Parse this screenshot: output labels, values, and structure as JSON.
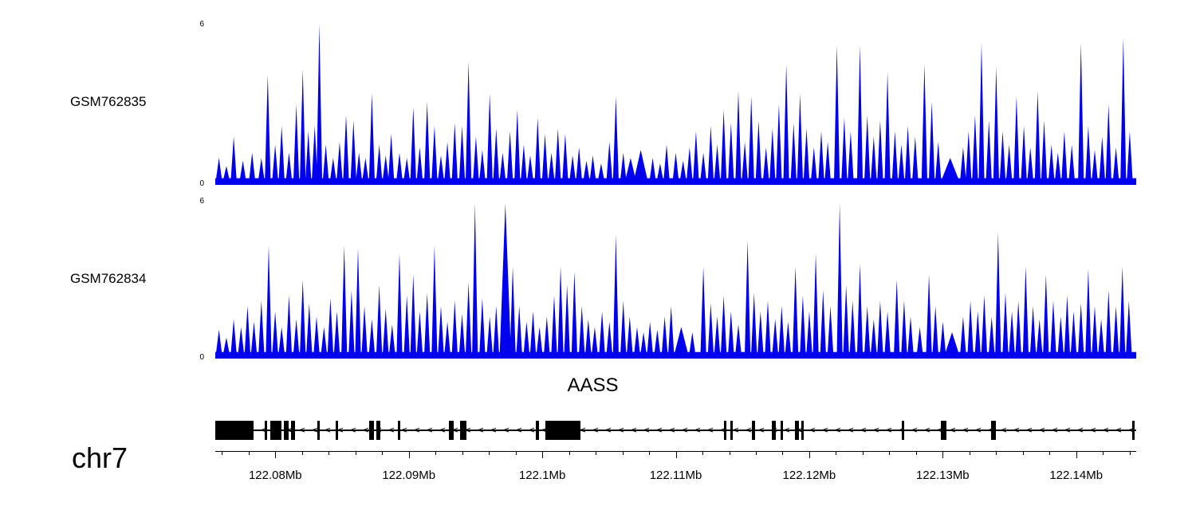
{
  "chart_data": {
    "type": "area",
    "title": "",
    "region": {
      "chromosome": "chr7",
      "start_mb": 122.0755,
      "end_mb": 122.1445,
      "unit": "Mb"
    },
    "tracks": [
      {
        "name": "GSM762835",
        "track_type": "coverage",
        "color": "#0000ee",
        "ylim": [
          0,
          6
        ],
        "yticks": [
          0,
          6
        ],
        "baseline": 0.25,
        "peaks": [
          [
            0.004,
            1.0
          ],
          [
            0.012,
            0.7
          ],
          [
            0.02,
            1.8
          ],
          [
            0.03,
            0.9
          ],
          [
            0.04,
            1.2
          ],
          [
            0.05,
            1.0
          ],
          [
            0.057,
            4.1
          ],
          [
            0.065,
            1.5
          ],
          [
            0.072,
            2.2
          ],
          [
            0.08,
            1.2
          ],
          [
            0.088,
            3.0
          ],
          [
            0.095,
            4.3
          ],
          [
            0.101,
            2.0
          ],
          [
            0.108,
            2.2
          ],
          [
            0.113,
            6.0
          ],
          [
            0.12,
            1.5
          ],
          [
            0.128,
            1.0
          ],
          [
            0.135,
            1.6
          ],
          [
            0.142,
            2.6
          ],
          [
            0.15,
            2.4
          ],
          [
            0.156,
            1.2
          ],
          [
            0.163,
            1.0
          ],
          [
            0.17,
            3.4
          ],
          [
            0.178,
            1.5
          ],
          [
            0.185,
            1.1
          ],
          [
            0.191,
            1.9
          ],
          [
            0.2,
            1.2
          ],
          [
            0.208,
            1.0
          ],
          [
            0.215,
            2.9
          ],
          [
            0.222,
            1.4
          ],
          [
            0.23,
            3.1
          ],
          [
            0.238,
            2.2
          ],
          [
            0.245,
            1.1
          ],
          [
            0.252,
            1.6
          ],
          [
            0.26,
            2.3
          ],
          [
            0.268,
            2.2
          ],
          [
            0.275,
            4.6
          ],
          [
            0.283,
            1.8
          ],
          [
            0.29,
            1.3
          ],
          [
            0.298,
            3.4
          ],
          [
            0.305,
            2.1
          ],
          [
            0.312,
            1.2
          ],
          [
            0.32,
            2.0
          ],
          [
            0.328,
            2.8
          ],
          [
            0.335,
            1.5
          ],
          [
            0.342,
            1.1
          ],
          [
            0.35,
            2.5
          ],
          [
            0.358,
            1.9
          ],
          [
            0.365,
            1.2
          ],
          [
            0.372,
            2.1
          ],
          [
            0.38,
            1.9
          ],
          [
            0.388,
            1.1
          ],
          [
            0.395,
            1.4
          ],
          [
            0.403,
            0.9
          ],
          [
            0.41,
            1.1
          ],
          [
            0.419,
            0.8
          ],
          [
            0.428,
            1.6
          ],
          [
            0.435,
            3.3
          ],
          [
            0.443,
            1.2
          ],
          [
            0.451,
            1.0,
            6
          ],
          [
            0.462,
            1.3,
            8
          ],
          [
            0.475,
            1.0
          ],
          [
            0.483,
            0.8
          ],
          [
            0.49,
            1.5
          ],
          [
            0.5,
            1.2
          ],
          [
            0.508,
            0.9
          ],
          [
            0.515,
            1.4
          ],
          [
            0.522,
            2.0
          ],
          [
            0.53,
            1.2
          ],
          [
            0.538,
            2.2
          ],
          [
            0.545,
            1.5
          ],
          [
            0.552,
            2.8
          ],
          [
            0.56,
            2.3
          ],
          [
            0.568,
            3.5
          ],
          [
            0.575,
            1.6
          ],
          [
            0.582,
            3.3
          ],
          [
            0.59,
            2.4
          ],
          [
            0.598,
            1.4
          ],
          [
            0.605,
            2.1
          ],
          [
            0.612,
            3.0
          ],
          [
            0.62,
            4.5
          ],
          [
            0.628,
            2.3
          ],
          [
            0.635,
            3.4
          ],
          [
            0.642,
            2.1
          ],
          [
            0.65,
            1.4
          ],
          [
            0.658,
            2.0
          ],
          [
            0.665,
            1.6
          ],
          [
            0.675,
            5.2
          ],
          [
            0.683,
            2.5
          ],
          [
            0.69,
            2.0
          ],
          [
            0.7,
            5.2
          ],
          [
            0.708,
            2.6
          ],
          [
            0.715,
            1.8
          ],
          [
            0.722,
            2.4
          ],
          [
            0.73,
            4.2
          ],
          [
            0.738,
            2.0
          ],
          [
            0.745,
            1.5
          ],
          [
            0.752,
            2.2
          ],
          [
            0.76,
            1.8
          ],
          [
            0.77,
            4.5
          ],
          [
            0.778,
            3.1
          ],
          [
            0.785,
            1.6
          ],
          [
            0.798,
            1.0,
            10
          ],
          [
            0.812,
            1.4
          ],
          [
            0.818,
            2.0
          ],
          [
            0.825,
            2.6
          ],
          [
            0.832,
            5.3
          ],
          [
            0.84,
            2.4
          ],
          [
            0.848,
            4.4
          ],
          [
            0.855,
            2.0
          ],
          [
            0.862,
            1.5
          ],
          [
            0.87,
            3.3
          ],
          [
            0.878,
            2.2
          ],
          [
            0.885,
            1.4
          ],
          [
            0.893,
            3.5
          ],
          [
            0.9,
            2.4
          ],
          [
            0.908,
            1.5
          ],
          [
            0.915,
            1.2
          ],
          [
            0.922,
            2.0
          ],
          [
            0.93,
            1.5
          ],
          [
            0.94,
            5.3
          ],
          [
            0.948,
            2.2
          ],
          [
            0.955,
            1.3
          ],
          [
            0.963,
            1.8
          ],
          [
            0.97,
            3.0
          ],
          [
            0.978,
            1.4
          ],
          [
            0.986,
            5.5
          ],
          [
            0.993,
            2.0
          ]
        ]
      },
      {
        "name": "GSM762834",
        "track_type": "coverage",
        "color": "#0000ee",
        "ylim": [
          0,
          6
        ],
        "yticks": [
          0,
          6
        ],
        "baseline": 0.25,
        "peaks": [
          [
            0.004,
            1.1
          ],
          [
            0.012,
            0.8
          ],
          [
            0.02,
            1.5
          ],
          [
            0.028,
            1.2
          ],
          [
            0.035,
            2.0
          ],
          [
            0.042,
            1.4
          ],
          [
            0.05,
            2.2
          ],
          [
            0.058,
            4.3
          ],
          [
            0.065,
            1.8
          ],
          [
            0.072,
            1.2
          ],
          [
            0.08,
            2.4
          ],
          [
            0.088,
            1.5
          ],
          [
            0.095,
            3.0
          ],
          [
            0.102,
            2.1
          ],
          [
            0.11,
            1.6
          ],
          [
            0.118,
            1.2
          ],
          [
            0.125,
            2.3
          ],
          [
            0.132,
            1.8
          ],
          [
            0.14,
            4.3
          ],
          [
            0.148,
            2.6
          ],
          [
            0.155,
            4.2
          ],
          [
            0.162,
            2.0
          ],
          [
            0.17,
            1.5
          ],
          [
            0.178,
            2.8
          ],
          [
            0.185,
            1.9
          ],
          [
            0.192,
            1.3
          ],
          [
            0.2,
            4.0
          ],
          [
            0.208,
            2.4
          ],
          [
            0.215,
            3.2
          ],
          [
            0.222,
            1.8
          ],
          [
            0.23,
            2.5
          ],
          [
            0.238,
            4.3
          ],
          [
            0.245,
            2.0
          ],
          [
            0.252,
            1.4
          ],
          [
            0.26,
            2.2
          ],
          [
            0.268,
            1.7
          ],
          [
            0.275,
            2.9
          ],
          [
            0.282,
            5.9
          ],
          [
            0.29,
            2.3
          ],
          [
            0.298,
            1.6
          ],
          [
            0.305,
            2.0
          ],
          [
            0.315,
            5.9,
            7
          ],
          [
            0.323,
            3.5
          ],
          [
            0.33,
            2.0
          ],
          [
            0.338,
            1.4
          ],
          [
            0.345,
            1.8
          ],
          [
            0.352,
            1.2
          ],
          [
            0.36,
            1.6
          ],
          [
            0.368,
            2.4
          ],
          [
            0.375,
            3.5
          ],
          [
            0.382,
            2.8
          ],
          [
            0.39,
            3.3
          ],
          [
            0.398,
            2.0
          ],
          [
            0.405,
            1.5
          ],
          [
            0.412,
            1.2
          ],
          [
            0.42,
            1.8
          ],
          [
            0.428,
            1.4
          ],
          [
            0.435,
            4.7
          ],
          [
            0.443,
            2.2
          ],
          [
            0.45,
            1.6
          ],
          [
            0.458,
            1.2
          ],
          [
            0.465,
            1.0
          ],
          [
            0.472,
            1.4
          ],
          [
            0.48,
            1.1
          ],
          [
            0.488,
            1.6
          ],
          [
            0.495,
            2.0
          ],
          [
            0.506,
            1.2,
            8
          ],
          [
            0.518,
            1.0
          ],
          [
            0.53,
            3.5
          ],
          [
            0.538,
            2.1
          ],
          [
            0.545,
            1.6
          ],
          [
            0.552,
            2.4
          ],
          [
            0.56,
            1.8
          ],
          [
            0.568,
            1.3
          ],
          [
            0.578,
            4.5
          ],
          [
            0.585,
            2.5
          ],
          [
            0.592,
            1.8
          ],
          [
            0.6,
            2.2
          ],
          [
            0.608,
            1.5
          ],
          [
            0.615,
            2.0
          ],
          [
            0.622,
            1.4
          ],
          [
            0.63,
            3.5
          ],
          [
            0.638,
            2.4
          ],
          [
            0.645,
            1.8
          ],
          [
            0.652,
            4.0
          ],
          [
            0.66,
            2.6
          ],
          [
            0.668,
            2.0
          ],
          [
            0.678,
            5.9
          ],
          [
            0.685,
            2.8
          ],
          [
            0.692,
            2.2
          ],
          [
            0.7,
            3.6
          ],
          [
            0.708,
            2.0
          ],
          [
            0.715,
            1.5
          ],
          [
            0.722,
            2.2
          ],
          [
            0.73,
            1.8
          ],
          [
            0.74,
            3.0
          ],
          [
            0.748,
            2.2
          ],
          [
            0.755,
            1.6
          ],
          [
            0.765,
            1.2
          ],
          [
            0.775,
            3.2
          ],
          [
            0.782,
            2.0
          ],
          [
            0.79,
            1.4
          ],
          [
            0.8,
            1.0,
            8
          ],
          [
            0.812,
            1.6
          ],
          [
            0.82,
            2.2
          ],
          [
            0.828,
            1.8
          ],
          [
            0.835,
            2.4
          ],
          [
            0.843,
            1.6
          ],
          [
            0.85,
            4.8
          ],
          [
            0.858,
            2.5
          ],
          [
            0.865,
            1.8
          ],
          [
            0.872,
            2.2
          ],
          [
            0.88,
            3.5
          ],
          [
            0.888,
            2.0
          ],
          [
            0.895,
            1.5
          ],
          [
            0.902,
            3.2
          ],
          [
            0.91,
            2.2
          ],
          [
            0.918,
            1.6
          ],
          [
            0.925,
            2.4
          ],
          [
            0.932,
            1.8
          ],
          [
            0.94,
            2.1
          ],
          [
            0.948,
            3.4
          ],
          [
            0.955,
            2.0
          ],
          [
            0.962,
            1.5
          ],
          [
            0.97,
            2.6
          ],
          [
            0.978,
            2.0
          ],
          [
            0.985,
            3.5
          ],
          [
            0.992,
            2.2
          ]
        ]
      }
    ],
    "gene_track": {
      "gene": "AASS",
      "strand": "-",
      "label_frac": 0.41,
      "exons": [
        {
          "x": 0.0,
          "w": 48
        },
        {
          "x": 0.054,
          "w": 3
        },
        {
          "x": 0.06,
          "w": 14
        },
        {
          "x": 0.074,
          "w": 6
        },
        {
          "x": 0.082,
          "w": 5
        },
        {
          "x": 0.111,
          "w": 3
        },
        {
          "x": 0.131,
          "w": 3
        },
        {
          "x": 0.167,
          "w": 6
        },
        {
          "x": 0.175,
          "w": 5
        },
        {
          "x": 0.198,
          "w": 3
        },
        {
          "x": 0.254,
          "w": 6
        },
        {
          "x": 0.266,
          "w": 8
        },
        {
          "x": 0.348,
          "w": 4
        },
        {
          "x": 0.358,
          "w": 44
        },
        {
          "x": 0.552,
          "w": 3
        },
        {
          "x": 0.559,
          "w": 3
        },
        {
          "x": 0.583,
          "w": 4
        },
        {
          "x": 0.604,
          "w": 5
        },
        {
          "x": 0.614,
          "w": 3
        },
        {
          "x": 0.629,
          "w": 5
        },
        {
          "x": 0.636,
          "w": 3
        },
        {
          "x": 0.745,
          "w": 3
        },
        {
          "x": 0.788,
          "w": 7
        },
        {
          "x": 0.842,
          "w": 6
        },
        {
          "x": 0.996,
          "w": 3
        }
      ]
    },
    "axis": {
      "chromosome_label": "chr7",
      "start_mb": 122.0755,
      "end_mb": 122.1445,
      "minor_step_mb": 0.002,
      "ticks": [
        {
          "value": 122.08,
          "label": "122.08Mb"
        },
        {
          "value": 122.09,
          "label": "122.09Mb"
        },
        {
          "value": 122.1,
          "label": "122.1Mb"
        },
        {
          "value": 122.11,
          "label": "122.11Mb"
        },
        {
          "value": 122.12,
          "label": "122.12Mb"
        },
        {
          "value": 122.13,
          "label": "122.13Mb"
        },
        {
          "value": 122.14,
          "label": "122.14Mb"
        }
      ]
    }
  }
}
